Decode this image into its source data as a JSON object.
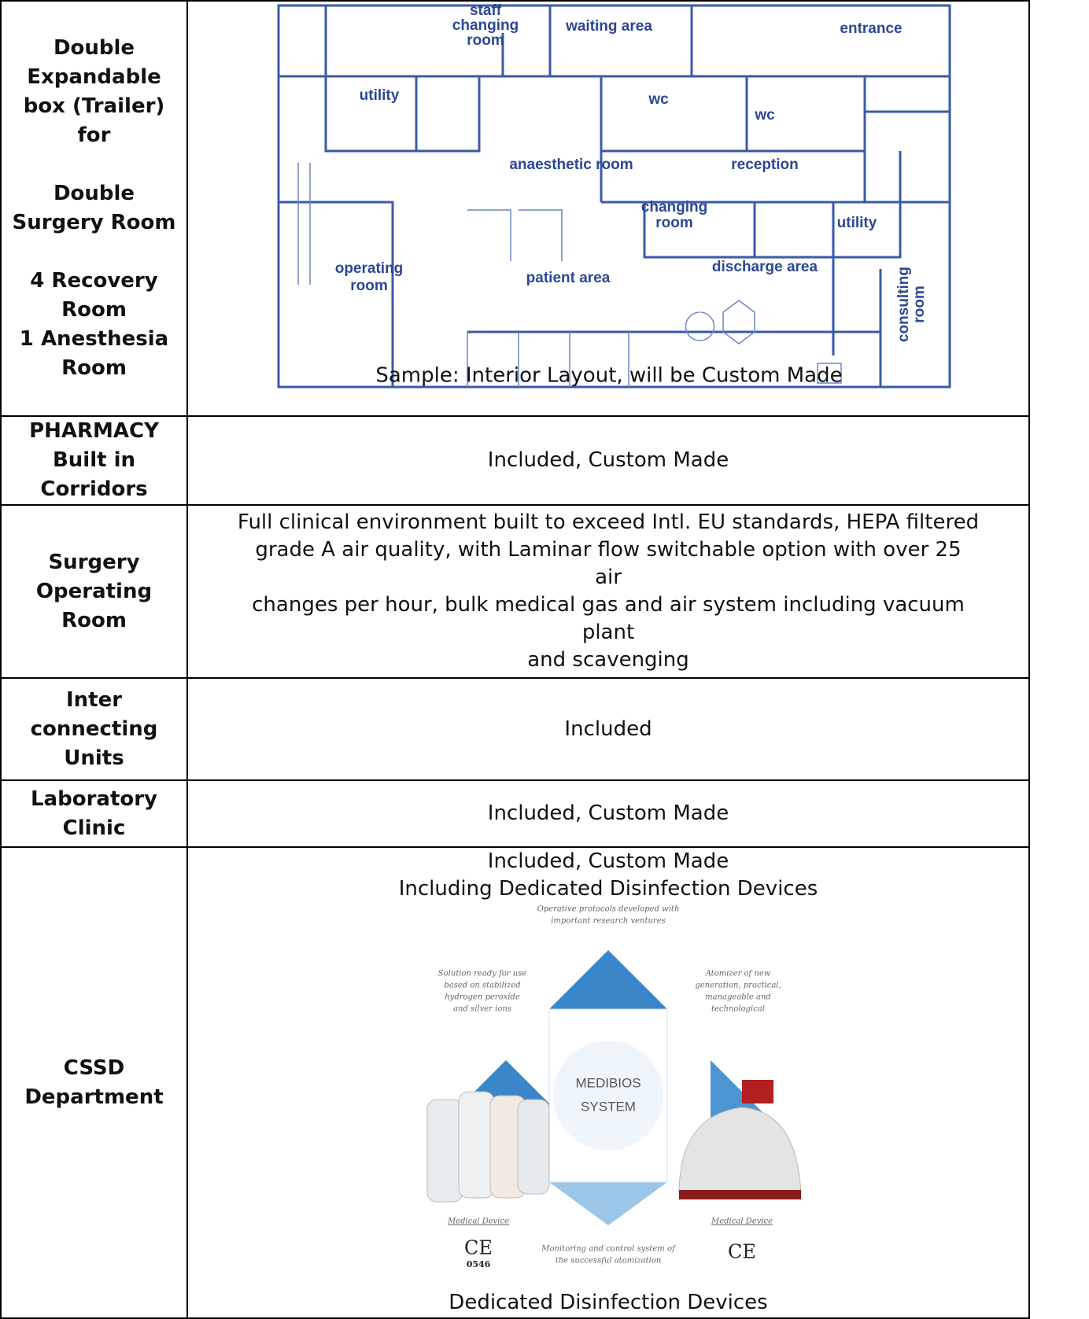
{
  "table": {
    "rows": [
      {
        "label": [
          [
            "Double",
            "Expandable",
            "box (Trailer)",
            "for"
          ],
          [
            "Double",
            "Surgery Room"
          ],
          [
            "4 Recovery",
            "Room",
            "1 Anesthesia",
            "Room"
          ]
        ],
        "floor_plan": {
          "labels": [
            "staff",
            "changing",
            "room",
            "waiting area",
            "entrance",
            "utility",
            "wc",
            "wc",
            "anaesthetic room",
            "reception",
            "changing",
            "room",
            "utility",
            "operating",
            "room",
            "patient area",
            "discharge area",
            "consulting",
            "room"
          ]
        },
        "caption": "Sample: Interior Layout, will be Custom Made"
      },
      {
        "label": [
          [
            "PHARMACY",
            "Built in",
            "Corridors"
          ]
        ],
        "content": [
          "Included, Custom Made"
        ]
      },
      {
        "label": [
          [
            "Surgery",
            "Operating",
            "Room"
          ]
        ],
        "content": [
          "Full clinical environment built to exceed Intl. EU standards, HEPA filtered",
          "grade A air quality, with Laminar flow switchable option with over 25",
          "air",
          "changes per hour, bulk medical gas and air system including vacuum",
          "plant",
          "and scavenging"
        ]
      },
      {
        "label": [
          [
            "Inter",
            "connecting",
            "Units"
          ]
        ],
        "content": [
          "Included"
        ]
      },
      {
        "label": [
          [
            "Laboratory",
            "Clinic"
          ]
        ],
        "content": [
          "Included, Custom Made"
        ]
      },
      {
        "label": [
          [
            "CSSD",
            "Department"
          ]
        ],
        "content": [
          "Included, Custom Made",
          "Including Dedicated Disinfection Devices"
        ],
        "diagram": {
          "center": [
            "MEDIBIOS",
            "SYSTEM"
          ],
          "top": [
            "Operative protocols developed with",
            "important research ventures"
          ],
          "left": [
            "Solution ready for use",
            "based on stabilized",
            "hydrogen peroxide",
            "and silver ions"
          ],
          "right": [
            "Atomizer of new",
            "generation, practical,",
            "manageable and",
            "technological"
          ],
          "bottom": [
            "Monitoring and control system of",
            "the successful atomization"
          ],
          "device_left": "Medical Device",
          "device_right": "Medical Device",
          "ce_left": "CE",
          "ce_number": "0546",
          "ce_right": "CE"
        },
        "caption": "Dedicated Disinfection Devices"
      }
    ]
  }
}
